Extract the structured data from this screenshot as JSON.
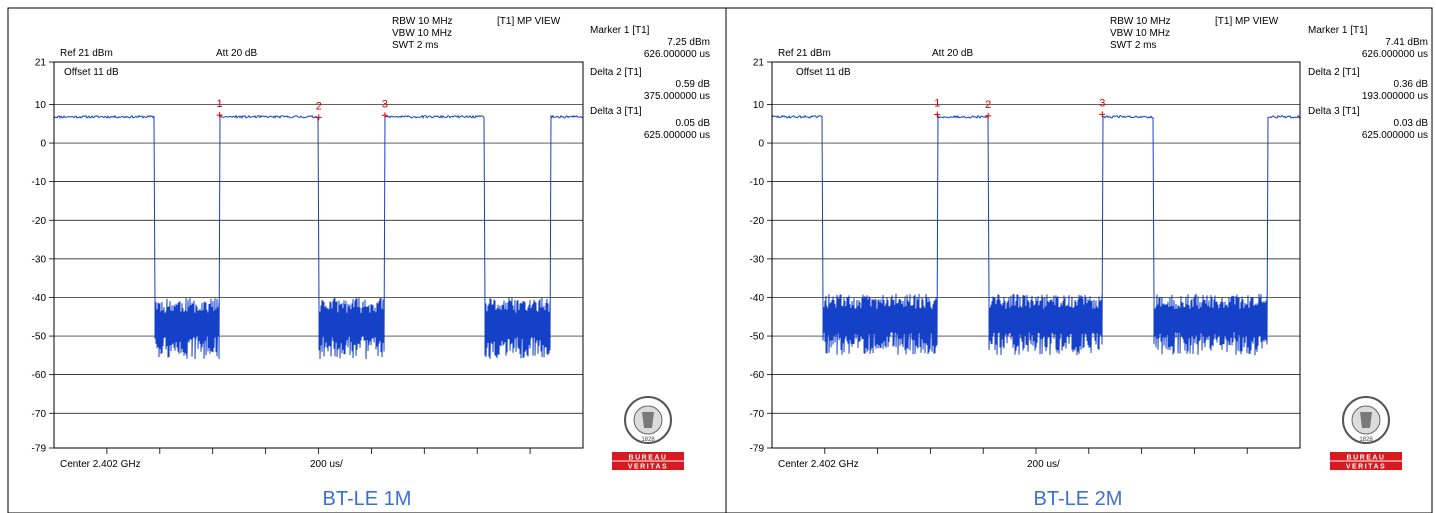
{
  "chart_data": [
    {
      "type": "line",
      "caption": "BT-LE 1M",
      "header": {
        "rbw": "RBW 10 MHz",
        "vbw": "VBW 10 MHz",
        "swt": "SWT 2 ms",
        "view": "[T1] MP VIEW",
        "ref": "Ref 21 dBm",
        "att": "Att  20 dB",
        "offset": "Offset 11 dB",
        "center": "Center 2.402 GHz",
        "span": "200 us/"
      },
      "markers_text": [
        {
          "label": "Marker 1 [T1]",
          "value": "7.25 dBm",
          "time": "626.000000 us"
        },
        {
          "label": "Delta 2 [T1]",
          "value": "0.59 dB",
          "time": "375.000000 us"
        },
        {
          "label": "Delta 3 [T1]",
          "value": "0.05 dB",
          "time": "625.000000 us"
        }
      ],
      "yticks": [
        "21",
        "10",
        "0",
        "-10",
        "-20",
        "-30",
        "-40",
        "-50",
        "-60",
        "-70",
        "-79"
      ],
      "ylim": [
        -79,
        21
      ],
      "xlim_us": [
        0,
        2000
      ],
      "on_level_dBm": 6.8,
      "off_level_dBm": -47,
      "on_intervals_us": [
        [
          0,
          380
        ],
        [
          626,
          1001
        ],
        [
          1251,
          1626
        ],
        [
          1876,
          2000
        ]
      ],
      "marker_points": [
        {
          "label": "1",
          "t_us": 626,
          "dBm": 7.25
        },
        {
          "label": "2",
          "t_us": 1001,
          "dBm": 6.66
        },
        {
          "label": "3",
          "t_us": 1251,
          "dBm": 7.2
        }
      ],
      "logo": {
        "line1": "BUREAU",
        "line2": "VERITAS",
        "year": "1828"
      }
    },
    {
      "type": "line",
      "caption": "BT-LE 2M",
      "header": {
        "rbw": "RBW 10 MHz",
        "vbw": "VBW 10 MHz",
        "swt": "SWT 2 ms",
        "view": "[T1] MP VIEW",
        "ref": "Ref 21 dBm",
        "att": "Att  20 dB",
        "offset": "Offset 11 dB",
        "center": "Center 2.402 GHz",
        "span": "200 us/"
      },
      "markers_text": [
        {
          "label": "Marker 1 [T1]",
          "value": "7.41 dBm",
          "time": "626.000000 us"
        },
        {
          "label": "Delta 2 [T1]",
          "value": "0.36 dB",
          "time": "193.000000 us"
        },
        {
          "label": "Delta 3 [T1]",
          "value": "0.03 dB",
          "time": "625.000000 us"
        }
      ],
      "yticks": [
        "21",
        "10",
        "0",
        "-10",
        "-20",
        "-30",
        "-40",
        "-50",
        "-60",
        "-70",
        "-79"
      ],
      "ylim": [
        -79,
        21
      ],
      "xlim_us": [
        0,
        2000
      ],
      "on_level_dBm": 6.8,
      "off_level_dBm": -46,
      "on_intervals_us": [
        [
          0,
          193
        ],
        [
          626,
          819
        ],
        [
          1251,
          1444
        ],
        [
          1876,
          2000
        ]
      ],
      "marker_points": [
        {
          "label": "1",
          "t_us": 626,
          "dBm": 7.41
        },
        {
          "label": "2",
          "t_us": 819,
          "dBm": 7.05
        },
        {
          "label": "3",
          "t_us": 1251,
          "dBm": 7.44
        }
      ],
      "logo": {
        "line1": "BUREAU",
        "line2": "VERITAS",
        "year": "1828"
      }
    }
  ]
}
